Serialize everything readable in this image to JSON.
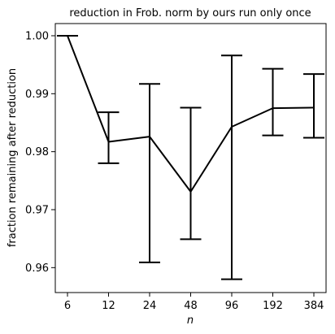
{
  "chart_data": {
    "type": "line",
    "title": "reduction in Frob. norm by ours run only once",
    "xlabel": "n",
    "ylabel": "fraction remaining after reduction",
    "categories": [
      "6",
      "12",
      "24",
      "48",
      "96",
      "192",
      "384"
    ],
    "series": [
      {
        "values": [
          1.0,
          0.9817,
          0.9826,
          0.9731,
          0.9843,
          0.9875,
          0.9876
        ],
        "err_low": [
          1.0,
          0.978,
          0.9609,
          0.9649,
          0.958,
          0.9828,
          0.9824
        ],
        "err_high": [
          1.0,
          0.9868,
          0.9917,
          0.9876,
          0.9966,
          0.9943,
          0.9934
        ],
        "color": "#000000"
      }
    ],
    "ylim": [
      0.9557,
      1.0021
    ],
    "yticks": [
      0.96,
      0.97,
      0.98,
      0.99,
      1.0
    ],
    "ytick_labels": [
      "0.96",
      "0.97",
      "0.98",
      "0.99",
      "1.00"
    ],
    "grid": false
  }
}
